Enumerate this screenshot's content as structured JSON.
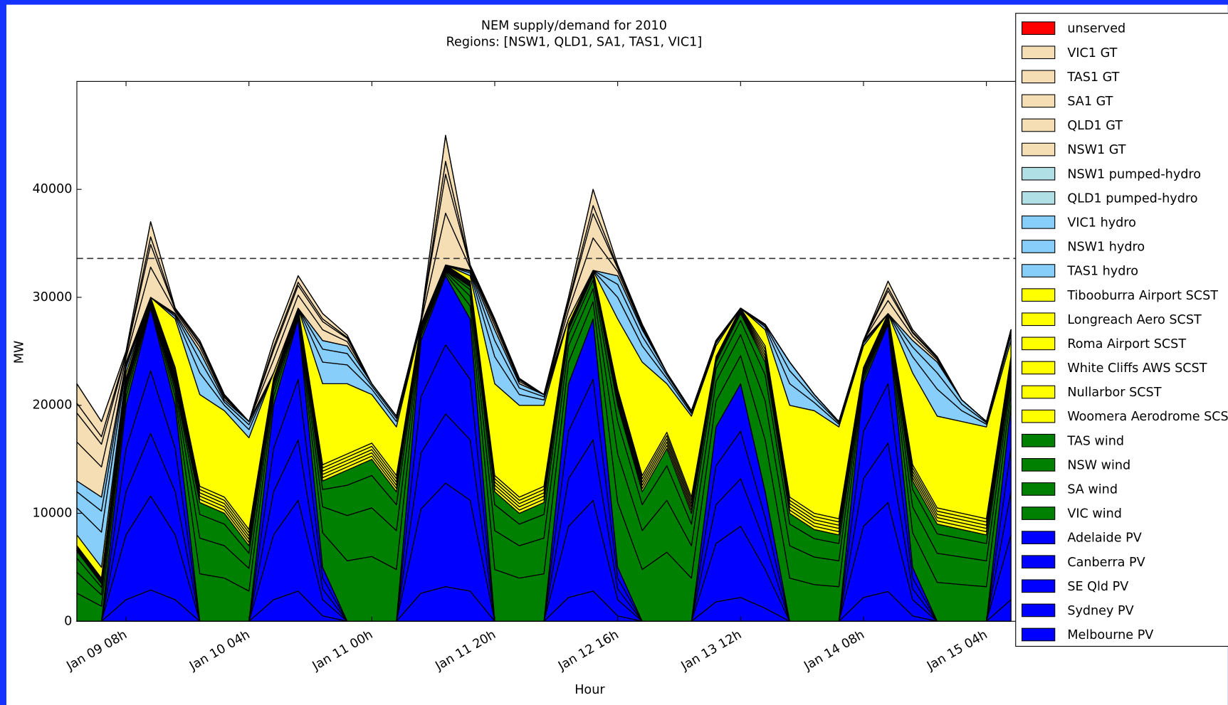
{
  "chart_data": {
    "type": "stacked-area",
    "title": "NEM supply/demand for 2010",
    "subtitle": "Regions: [NSW1, QLD1, SA1, TAS1, VIC1]",
    "x_label": "Hour",
    "y_label": "MW",
    "categories": [
      null,
      null,
      "Jan 09 08h",
      null,
      null,
      null,
      null,
      "Jan 10 04h",
      null,
      null,
      null,
      null,
      "Jan 11 00h",
      null,
      null,
      null,
      null,
      "Jan 11 20h",
      null,
      null,
      null,
      null,
      "Jan 12 16h",
      null,
      null,
      null,
      null,
      "Jan 13 12h",
      null,
      null,
      null,
      null,
      "Jan 14 08h",
      null,
      null,
      null,
      null,
      "Jan 15 04h",
      null
    ],
    "ylim": [
      0,
      50000
    ],
    "yticks": [
      0,
      10000,
      20000,
      30000,
      40000
    ],
    "hline": 33600,
    "series": [
      {
        "name": "unserved",
        "color": "#ff0000",
        "values": [
          0,
          0,
          0,
          0,
          0,
          0,
          0,
          0,
          0,
          0,
          0,
          0,
          0,
          0,
          0,
          0,
          0,
          0,
          0,
          0,
          0,
          0,
          0,
          0,
          0,
          0,
          0,
          0,
          0,
          0,
          0,
          0,
          0,
          0,
          0,
          0,
          0,
          0,
          0
        ]
      },
      {
        "name": "VIC1 GT",
        "color": "#f5deb3",
        "values": [
          1800,
          1400,
          200,
          1400,
          100,
          200,
          100,
          0,
          600,
          600,
          500,
          200,
          0,
          0,
          100,
          2400,
          100,
          200,
          100,
          0,
          400,
          1500,
          200,
          100,
          0,
          0,
          0,
          0,
          0,
          0,
          0,
          0,
          0,
          600,
          200,
          100,
          0,
          0,
          0
        ]
      },
      {
        "name": "TAS1 GT",
        "color": "#f5deb3",
        "values": [
          0,
          0,
          0,
          0,
          0,
          0,
          0,
          0,
          0,
          0,
          0,
          0,
          0,
          0,
          0,
          0,
          0,
          0,
          0,
          0,
          0,
          0,
          0,
          0,
          0,
          0,
          0,
          0,
          0,
          0,
          0,
          0,
          0,
          0,
          0,
          0,
          0,
          0,
          0
        ]
      },
      {
        "name": "SA1 GT",
        "color": "#f5deb3",
        "values": [
          900,
          700,
          100,
          700,
          50,
          100,
          50,
          0,
          300,
          300,
          250,
          100,
          0,
          0,
          50,
          1200,
          50,
          100,
          50,
          0,
          200,
          750,
          100,
          50,
          0,
          0,
          0,
          0,
          0,
          0,
          0,
          0,
          0,
          300,
          100,
          50,
          0,
          0,
          0
        ]
      },
      {
        "name": "QLD1 GT",
        "color": "#f5deb3",
        "values": [
          2700,
          2100,
          300,
          2100,
          150,
          300,
          150,
          0,
          900,
          900,
          750,
          300,
          0,
          0,
          150,
          3600,
          150,
          300,
          150,
          0,
          600,
          2250,
          300,
          150,
          0,
          0,
          0,
          0,
          0,
          0,
          0,
          0,
          0,
          900,
          300,
          150,
          0,
          0,
          0
        ]
      },
      {
        "name": "NSW1 GT",
        "color": "#f5deb3",
        "values": [
          3600,
          2800,
          400,
          2800,
          200,
          400,
          200,
          0,
          1200,
          1200,
          1000,
          400,
          0,
          0,
          200,
          4800,
          200,
          400,
          200,
          0,
          800,
          3000,
          400,
          200,
          0,
          0,
          0,
          0,
          0,
          0,
          0,
          0,
          0,
          1200,
          400,
          200,
          0,
          0,
          0
        ]
      },
      {
        "name": "NSW1 pumped-hydro",
        "color": "#b0e0e6",
        "values": [
          0,
          0,
          0,
          0,
          0,
          0,
          0,
          0,
          0,
          0,
          0,
          0,
          0,
          0,
          0,
          0,
          0,
          0,
          0,
          0,
          0,
          0,
          0,
          0,
          0,
          0,
          0,
          0,
          0,
          0,
          0,
          0,
          0,
          0,
          0,
          0,
          0,
          0,
          0
        ]
      },
      {
        "name": "QLD1 pumped-hydro",
        "color": "#b0e0e6",
        "values": [
          0,
          0,
          0,
          0,
          0,
          0,
          0,
          0,
          0,
          0,
          0,
          0,
          0,
          0,
          0,
          0,
          0,
          0,
          0,
          0,
          0,
          0,
          0,
          0,
          0,
          0,
          0,
          0,
          0,
          0,
          0,
          0,
          0,
          0,
          0,
          0,
          0,
          0,
          0
        ]
      },
      {
        "name": "VIC1 hydro",
        "color": "#87cefa",
        "values": [
          1000,
          1300,
          200,
          0,
          100,
          800,
          200,
          300,
          0,
          0,
          800,
          700,
          200,
          200,
          0,
          0,
          100,
          1000,
          400,
          200,
          0,
          0,
          800,
          600,
          200,
          100,
          100,
          0,
          100,
          800,
          300,
          100,
          100,
          0,
          600,
          1000,
          400,
          100,
          200
        ]
      },
      {
        "name": "NSW1 hydro",
        "color": "#87cefa",
        "values": [
          1500,
          1950,
          300,
          0,
          150,
          1200,
          300,
          450,
          0,
          0,
          1200,
          1050,
          300,
          300,
          0,
          0,
          150,
          1500,
          600,
          300,
          0,
          0,
          1200,
          900,
          300,
          150,
          150,
          0,
          150,
          1200,
          450,
          150,
          150,
          0,
          900,
          1500,
          600,
          150,
          300
        ]
      },
      {
        "name": "TAS1 hydro",
        "color": "#87cefa",
        "values": [
          2500,
          3250,
          500,
          0,
          250,
          2000,
          500,
          750,
          0,
          0,
          2000,
          1750,
          500,
          500,
          0,
          0,
          250,
          2500,
          1000,
          500,
          0,
          0,
          2000,
          1500,
          500,
          250,
          250,
          0,
          250,
          2000,
          750,
          250,
          250,
          0,
          1500,
          2500,
          1000,
          250,
          500
        ]
      },
      {
        "name": "Tibooburra Airport SCST",
        "color": "#ffff00",
        "values": [
          1000,
          1000,
          500,
          0,
          4500,
          8500,
          8000,
          8500,
          500,
          0,
          7500,
          6500,
          4500,
          4500,
          0,
          0,
          500,
          8500,
          8500,
          7500,
          500,
          0,
          6500,
          10500,
          4500,
          7500,
          1000,
          0,
          1500,
          8500,
          9500,
          8500,
          2000,
          0,
          8500,
          8500,
          8500,
          8500,
          1500
        ]
      },
      {
        "name": "Longreach Aero SCST",
        "color": "#ffff00",
        "values": [
          100,
          100,
          100,
          100,
          300,
          300,
          300,
          300,
          100,
          100,
          300,
          300,
          300,
          300,
          100,
          100,
          100,
          300,
          300,
          300,
          100,
          100,
          300,
          300,
          300,
          300,
          100,
          100,
          300,
          300,
          300,
          300,
          100,
          100,
          300,
          300,
          300,
          300,
          300
        ]
      },
      {
        "name": "Roma Airport SCST",
        "color": "#ffff00",
        "values": [
          100,
          100,
          100,
          100,
          300,
          300,
          300,
          300,
          100,
          100,
          300,
          300,
          300,
          300,
          100,
          100,
          100,
          300,
          300,
          300,
          100,
          100,
          300,
          300,
          300,
          300,
          100,
          100,
          300,
          300,
          300,
          300,
          100,
          100,
          300,
          300,
          300,
          300,
          300
        ]
      },
      {
        "name": "White Cliffs AWS SCST",
        "color": "#ffff00",
        "values": [
          100,
          100,
          100,
          100,
          300,
          300,
          300,
          300,
          100,
          100,
          300,
          300,
          300,
          300,
          100,
          100,
          100,
          300,
          300,
          300,
          100,
          100,
          300,
          300,
          300,
          300,
          100,
          100,
          300,
          300,
          300,
          300,
          100,
          100,
          300,
          300,
          300,
          300,
          300
        ]
      },
      {
        "name": "Nullarbor SCST",
        "color": "#ffff00",
        "values": [
          100,
          100,
          100,
          100,
          300,
          300,
          300,
          300,
          100,
          100,
          300,
          300,
          300,
          300,
          100,
          100,
          100,
          300,
          300,
          300,
          100,
          100,
          300,
          300,
          300,
          300,
          100,
          100,
          300,
          300,
          300,
          300,
          100,
          100,
          300,
          300,
          300,
          300,
          300
        ]
      },
      {
        "name": "Woomera Aerodrome SCST",
        "color": "#ffff00",
        "values": [
          100,
          100,
          100,
          100,
          300,
          300,
          300,
          300,
          100,
          100,
          300,
          300,
          300,
          300,
          100,
          100,
          100,
          300,
          300,
          300,
          100,
          100,
          300,
          300,
          300,
          300,
          100,
          100,
          300,
          300,
          300,
          300,
          100,
          100,
          300,
          300,
          300,
          300,
          300
        ]
      },
      {
        "name": "TAS wind",
        "color": "#008000",
        "values": [
          650,
          350,
          200,
          50,
          200,
          1100,
          1000,
          700,
          200,
          50,
          800,
          1400,
          1500,
          1200,
          100,
          50,
          300,
          1200,
          1000,
          1100,
          500,
          400,
          1500,
          1200,
          1600,
          1000,
          600,
          650,
          1200,
          1000,
          850,
          800,
          100,
          50,
          800,
          900,
          850,
          800,
          300
        ]
      },
      {
        "name": "NSW wind",
        "color": "#008000",
        "values": [
          1300,
          700,
          400,
          100,
          400,
          2200,
          2000,
          1400,
          400,
          100,
          1600,
          2800,
          3000,
          2400,
          200,
          100,
          600,
          2400,
          2000,
          2200,
          1000,
          800,
          3000,
          2400,
          3200,
          2000,
          1200,
          1300,
          2400,
          2000,
          1700,
          1600,
          200,
          100,
          1600,
          1800,
          1700,
          1600,
          600
        ]
      },
      {
        "name": "SA wind",
        "color": "#008000",
        "values": [
          1950,
          1050,
          600,
          150,
          600,
          3300,
          3000,
          2100,
          600,
          150,
          2400,
          4200,
          4500,
          3600,
          300,
          150,
          900,
          3600,
          3000,
          3300,
          1500,
          1200,
          4500,
          3600,
          4800,
          3000,
          1800,
          1950,
          3600,
          3000,
          2550,
          2400,
          300,
          150,
          2400,
          2700,
          2550,
          2400,
          900
        ]
      },
      {
        "name": "VIC wind",
        "color": "#008000",
        "values": [
          2600,
          1400,
          800,
          200,
          800,
          4400,
          4000,
          2800,
          800,
          200,
          3200,
          5600,
          6000,
          4800,
          400,
          200,
          1200,
          4800,
          4000,
          4400,
          2000,
          1600,
          6000,
          4800,
          6400,
          4000,
          2400,
          2600,
          4800,
          4000,
          3400,
          3200,
          400,
          200,
          3200,
          3600,
          3400,
          3200,
          1200
        ]
      },
      {
        "name": "Adelaide PV",
        "color": "#0000ff",
        "values": [
          0,
          0,
          4000,
          5800,
          4000,
          0,
          0,
          0,
          4000,
          5600,
          1000,
          0,
          0,
          0,
          5200,
          6400,
          5600,
          0,
          0,
          0,
          4400,
          5600,
          1000,
          0,
          0,
          0,
          3600,
          4400,
          2400,
          0,
          0,
          0,
          4400,
          5500,
          1000,
          0,
          0,
          0,
          4000
        ]
      },
      {
        "name": "Canberra PV",
        "color": "#0000ff",
        "values": [
          0,
          0,
          4000,
          5800,
          4000,
          0,
          0,
          0,
          4000,
          5600,
          1000,
          0,
          0,
          0,
          5200,
          6400,
          5600,
          0,
          0,
          0,
          4400,
          5600,
          1000,
          0,
          0,
          0,
          3600,
          4400,
          2400,
          0,
          0,
          0,
          4400,
          5500,
          1000,
          0,
          0,
          0,
          4000
        ]
      },
      {
        "name": "SE Qld PV",
        "color": "#0000ff",
        "values": [
          0,
          0,
          4000,
          5800,
          4000,
          0,
          0,
          0,
          4000,
          5600,
          1000,
          0,
          0,
          0,
          5200,
          6400,
          5600,
          0,
          0,
          0,
          4400,
          5600,
          1000,
          0,
          0,
          0,
          3600,
          4400,
          2400,
          0,
          0,
          0,
          4400,
          5500,
          1000,
          0,
          0,
          0,
          4000
        ]
      },
      {
        "name": "Sydney PV",
        "color": "#0000ff",
        "values": [
          0,
          0,
          6000,
          8700,
          6000,
          0,
          0,
          0,
          6000,
          8400,
          1500,
          0,
          0,
          0,
          7800,
          9600,
          8400,
          0,
          0,
          0,
          6600,
          8400,
          1500,
          0,
          0,
          0,
          5400,
          6600,
          3600,
          0,
          0,
          0,
          6600,
          8250,
          1500,
          0,
          0,
          0,
          6000
        ]
      },
      {
        "name": "Melbourne PV",
        "color": "#0000ff",
        "values": [
          0,
          0,
          2000,
          2900,
          2000,
          0,
          0,
          0,
          2000,
          2800,
          500,
          0,
          0,
          0,
          2600,
          3200,
          2800,
          0,
          0,
          0,
          2200,
          2800,
          500,
          0,
          0,
          0,
          1800,
          2200,
          1200,
          0,
          0,
          0,
          2200,
          2750,
          500,
          0,
          0,
          0,
          2000
        ]
      }
    ]
  }
}
